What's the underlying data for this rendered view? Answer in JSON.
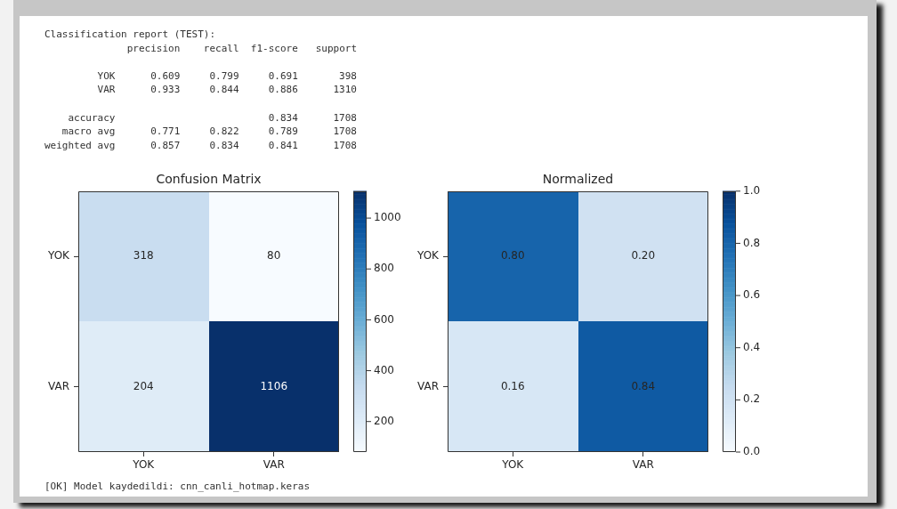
{
  "chart_data": [
    {
      "type": "other",
      "title": "Classification report (TEST):",
      "annotations": [
        "precision    recall  f1-score   support",
        "YOK      0.609     0.799     0.691       398",
        "VAR      0.933     0.844     0.886      1310",
        "accuracy                          0.834      1708",
        "macro avg      0.771     0.822     0.789      1708",
        "weighted avg      0.857     0.834     0.841      1708"
      ]
    },
    {
      "type": "heatmap",
      "title": "Confusion Matrix",
      "categories": [
        "YOK",
        "VAR"
      ],
      "y_categories": [
        "YOK",
        "VAR"
      ],
      "cells": [
        [
          318,
          80
        ],
        [
          204,
          1106
        ]
      ],
      "data_labels": true,
      "clim": [
        80,
        1106
      ],
      "cticks": [
        200,
        400,
        600,
        800,
        1000
      ]
    },
    {
      "type": "heatmap",
      "title": "Normalized",
      "categories": [
        "YOK",
        "VAR"
      ],
      "y_categories": [
        "YOK",
        "VAR"
      ],
      "cells": [
        [
          0.8,
          0.2
        ],
        [
          0.16,
          0.84
        ]
      ],
      "cell_labels": [
        [
          "0.80",
          "0.20"
        ],
        [
          "0.16",
          "0.84"
        ]
      ],
      "clim": [
        0,
        1
      ],
      "cticks": [
        {
          "value": 0,
          "label": "0.0"
        },
        0.2,
        0.4,
        0.6,
        0.8,
        {
          "value": 1,
          "label": "1.0"
        }
      ]
    },
    {
      "type": "other",
      "annotations": [
        "[OK] Model kaydedildi: cnn_canli_hotmap.keras"
      ]
    }
  ]
}
